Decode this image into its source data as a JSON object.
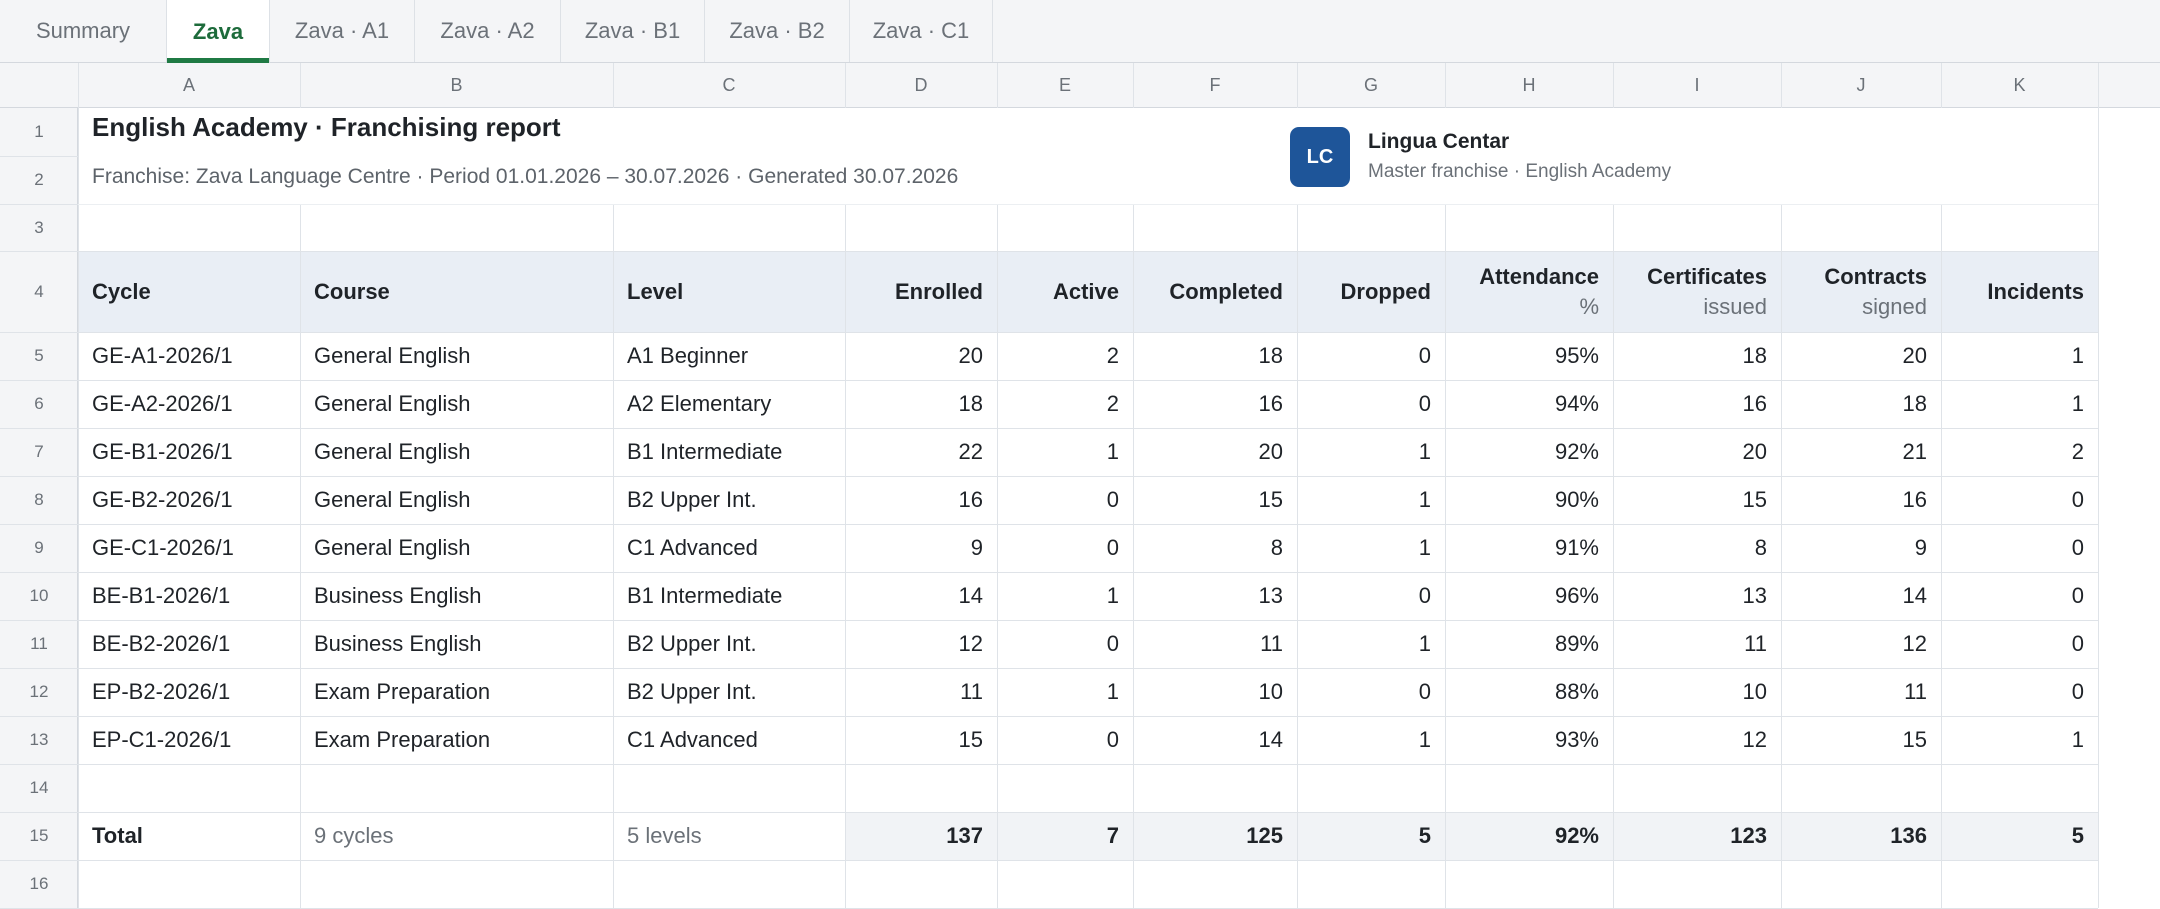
{
  "tabs": [
    {
      "label": "Summary",
      "active": false
    },
    {
      "label": "Zava",
      "active": true
    },
    {
      "label": "Zava · A1",
      "active": false
    },
    {
      "label": "Zava · A2",
      "active": false
    },
    {
      "label": "Zava · B1",
      "active": false
    },
    {
      "label": "Zava · B2",
      "active": false
    },
    {
      "label": "Zava · C1",
      "active": false
    }
  ],
  "columns": [
    "A",
    "B",
    "C",
    "D",
    "E",
    "F",
    "G",
    "H",
    "I",
    "J",
    "K"
  ],
  "row_numbers": [
    "1",
    "2",
    "3",
    "4",
    "5",
    "6",
    "7",
    "8",
    "9",
    "10",
    "11",
    "12",
    "13",
    "14",
    "15",
    "16"
  ],
  "report": {
    "title": "English Academy · Franchising report",
    "subtitle": "Franchise: Zava Language Centre · Period 01.01.2026 – 30.07.2026 · Generated 30.07.2026"
  },
  "brand": {
    "initials": "LC",
    "name": "Lingua Centar",
    "subtitle": "Master franchise · English Academy",
    "color": "#1e5599"
  },
  "table": {
    "headers": [
      {
        "label": "Cycle",
        "sub": ""
      },
      {
        "label": "Course",
        "sub": ""
      },
      {
        "label": "Level",
        "sub": ""
      },
      {
        "label": "Enrolled",
        "sub": ""
      },
      {
        "label": "Active",
        "sub": ""
      },
      {
        "label": "Completed",
        "sub": ""
      },
      {
        "label": "Dropped",
        "sub": ""
      },
      {
        "label": "Attendance",
        "sub": "%"
      },
      {
        "label": "Certificates",
        "sub": "issued"
      },
      {
        "label": "Contracts",
        "sub": "signed"
      },
      {
        "label": "Incidents",
        "sub": ""
      }
    ],
    "rows": [
      [
        "GE-A1-2026/1",
        "General English",
        "A1 Beginner",
        "20",
        "2",
        "18",
        "0",
        "95%",
        "18",
        "20",
        "1"
      ],
      [
        "GE-A2-2026/1",
        "General English",
        "A2 Elementary",
        "18",
        "2",
        "16",
        "0",
        "94%",
        "16",
        "18",
        "1"
      ],
      [
        "GE-B1-2026/1",
        "General English",
        "B1 Intermediate",
        "22",
        "1",
        "20",
        "1",
        "92%",
        "20",
        "21",
        "2"
      ],
      [
        "GE-B2-2026/1",
        "General English",
        "B2 Upper Int.",
        "16",
        "0",
        "15",
        "1",
        "90%",
        "15",
        "16",
        "0"
      ],
      [
        "GE-C1-2026/1",
        "General English",
        "C1 Advanced",
        "9",
        "0",
        "8",
        "1",
        "91%",
        "8",
        "9",
        "0"
      ],
      [
        "BE-B1-2026/1",
        "Business English",
        "B1 Intermediate",
        "14",
        "1",
        "13",
        "0",
        "96%",
        "13",
        "14",
        "0"
      ],
      [
        "BE-B2-2026/1",
        "Business English",
        "B2 Upper Int.",
        "12",
        "0",
        "11",
        "1",
        "89%",
        "11",
        "12",
        "0"
      ],
      [
        "EP-B2-2026/1",
        "Exam Preparation",
        "B2 Upper Int.",
        "11",
        "1",
        "10",
        "0",
        "88%",
        "10",
        "11",
        "0"
      ],
      [
        "EP-C1-2026/1",
        "Exam Preparation",
        "C1 Advanced",
        "15",
        "0",
        "14",
        "1",
        "93%",
        "12",
        "15",
        "1"
      ]
    ],
    "total": [
      "Total",
      "9 cycles",
      "5 levels",
      "137",
      "7",
      "125",
      "5",
      "92%",
      "123",
      "136",
      "5"
    ]
  }
}
